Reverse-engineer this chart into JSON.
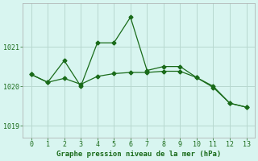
{
  "x": [
    0,
    1,
    2,
    3,
    4,
    5,
    6,
    7,
    8,
    9,
    10,
    11,
    12,
    13
  ],
  "line1": [
    1020.3,
    1020.1,
    1020.65,
    1020.0,
    1021.1,
    1021.1,
    1021.75,
    1020.4,
    1020.5,
    1020.5,
    1020.22,
    1020.0,
    1019.57,
    1019.47
  ],
  "line2": [
    1020.3,
    1020.1,
    1020.2,
    1020.05,
    1020.25,
    1020.32,
    1020.35,
    1020.35,
    1020.38,
    1020.38,
    1020.22,
    1019.97,
    1019.57,
    1019.47
  ],
  "line_color": "#1a6b1a",
  "bg_color": "#d8f5f0",
  "grid_color": "#b8d8d0",
  "xlabel": "Graphe pression niveau de la mer (hPa)",
  "yticks": [
    1019,
    1020,
    1021
  ],
  "ytick_labels": [
    "1019",
    "1020",
    "1021"
  ],
  "xticks": [
    0,
    1,
    2,
    3,
    4,
    5,
    6,
    7,
    8,
    9,
    10,
    11,
    12,
    13
  ],
  "xlim": [
    -0.5,
    13.5
  ],
  "ylim": [
    1018.7,
    1022.1
  ],
  "xlabel_fontsize": 6.5,
  "tick_fontsize": 6.0,
  "linewidth": 0.9,
  "markersize": 2.5
}
